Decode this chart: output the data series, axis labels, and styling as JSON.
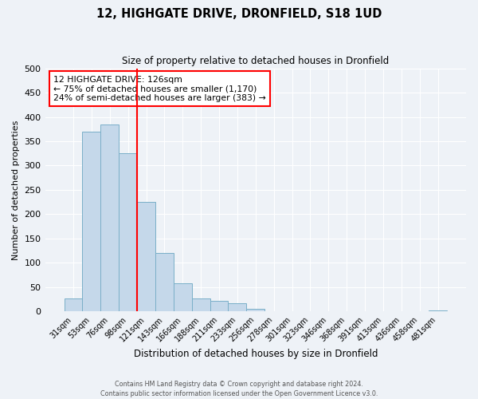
{
  "title": "12, HIGHGATE DRIVE, DRONFIELD, S18 1UD",
  "subtitle": "Size of property relative to detached houses in Dronfield",
  "xlabel": "Distribution of detached houses by size in Dronfield",
  "ylabel": "Number of detached properties",
  "bar_labels": [
    "31sqm",
    "53sqm",
    "76sqm",
    "98sqm",
    "121sqm",
    "143sqm",
    "166sqm",
    "188sqm",
    "211sqm",
    "233sqm",
    "256sqm",
    "278sqm",
    "301sqm",
    "323sqm",
    "346sqm",
    "368sqm",
    "391sqm",
    "413sqm",
    "436sqm",
    "458sqm",
    "481sqm"
  ],
  "bar_values": [
    27,
    370,
    385,
    325,
    225,
    120,
    58,
    27,
    22,
    17,
    5,
    1,
    0,
    0,
    0,
    0,
    0,
    0,
    0,
    0,
    2
  ],
  "bar_color": "#c5d8ea",
  "bar_edge_color": "#7aafc8",
  "vline_index": 4,
  "vline_color": "red",
  "ylim": [
    0,
    500
  ],
  "yticks": [
    0,
    50,
    100,
    150,
    200,
    250,
    300,
    350,
    400,
    450,
    500
  ],
  "annotation_title": "12 HIGHGATE DRIVE: 126sqm",
  "annotation_line1": "← 75% of detached houses are smaller (1,170)",
  "annotation_line2": "24% of semi-detached houses are larger (383) →",
  "footer1": "Contains HM Land Registry data © Crown copyright and database right 2024.",
  "footer2": "Contains public sector information licensed under the Open Government Licence v3.0.",
  "bg_color": "#eef2f7",
  "plot_bg_color": "#eef2f7"
}
